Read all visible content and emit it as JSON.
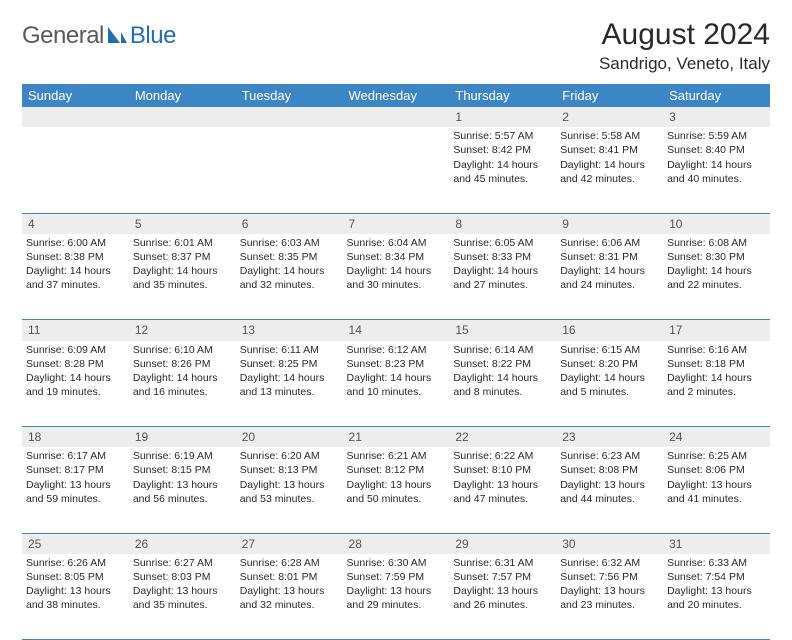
{
  "brand": {
    "part1": "General",
    "part2": "Blue"
  },
  "title": "August 2024",
  "location": "Sandrigo, Veneto, Italy",
  "colors": {
    "header_bg": "#3d86c6",
    "header_text": "#ffffff",
    "daynum_bg": "#ededed",
    "border": "#3d86c6",
    "logo_gray": "#5a5a5a",
    "logo_blue": "#1f6fb2"
  },
  "weekdays": [
    "Sunday",
    "Monday",
    "Tuesday",
    "Wednesday",
    "Thursday",
    "Friday",
    "Saturday"
  ],
  "weeks": [
    {
      "nums": [
        "",
        "",
        "",
        "",
        "1",
        "2",
        "3"
      ],
      "cells": [
        "",
        "",
        "",
        "",
        "Sunrise: 5:57 AM\nSunset: 8:42 PM\nDaylight: 14 hours and 45 minutes.",
        "Sunrise: 5:58 AM\nSunset: 8:41 PM\nDaylight: 14 hours and 42 minutes.",
        "Sunrise: 5:59 AM\nSunset: 8:40 PM\nDaylight: 14 hours and 40 minutes."
      ]
    },
    {
      "nums": [
        "4",
        "5",
        "6",
        "7",
        "8",
        "9",
        "10"
      ],
      "cells": [
        "Sunrise: 6:00 AM\nSunset: 8:38 PM\nDaylight: 14 hours and 37 minutes.",
        "Sunrise: 6:01 AM\nSunset: 8:37 PM\nDaylight: 14 hours and 35 minutes.",
        "Sunrise: 6:03 AM\nSunset: 8:35 PM\nDaylight: 14 hours and 32 minutes.",
        "Sunrise: 6:04 AM\nSunset: 8:34 PM\nDaylight: 14 hours and 30 minutes.",
        "Sunrise: 6:05 AM\nSunset: 8:33 PM\nDaylight: 14 hours and 27 minutes.",
        "Sunrise: 6:06 AM\nSunset: 8:31 PM\nDaylight: 14 hours and 24 minutes.",
        "Sunrise: 6:08 AM\nSunset: 8:30 PM\nDaylight: 14 hours and 22 minutes."
      ]
    },
    {
      "nums": [
        "11",
        "12",
        "13",
        "14",
        "15",
        "16",
        "17"
      ],
      "cells": [
        "Sunrise: 6:09 AM\nSunset: 8:28 PM\nDaylight: 14 hours and 19 minutes.",
        "Sunrise: 6:10 AM\nSunset: 8:26 PM\nDaylight: 14 hours and 16 minutes.",
        "Sunrise: 6:11 AM\nSunset: 8:25 PM\nDaylight: 14 hours and 13 minutes.",
        "Sunrise: 6:12 AM\nSunset: 8:23 PM\nDaylight: 14 hours and 10 minutes.",
        "Sunrise: 6:14 AM\nSunset: 8:22 PM\nDaylight: 14 hours and 8 minutes.",
        "Sunrise: 6:15 AM\nSunset: 8:20 PM\nDaylight: 14 hours and 5 minutes.",
        "Sunrise: 6:16 AM\nSunset: 8:18 PM\nDaylight: 14 hours and 2 minutes."
      ]
    },
    {
      "nums": [
        "18",
        "19",
        "20",
        "21",
        "22",
        "23",
        "24"
      ],
      "cells": [
        "Sunrise: 6:17 AM\nSunset: 8:17 PM\nDaylight: 13 hours and 59 minutes.",
        "Sunrise: 6:19 AM\nSunset: 8:15 PM\nDaylight: 13 hours and 56 minutes.",
        "Sunrise: 6:20 AM\nSunset: 8:13 PM\nDaylight: 13 hours and 53 minutes.",
        "Sunrise: 6:21 AM\nSunset: 8:12 PM\nDaylight: 13 hours and 50 minutes.",
        "Sunrise: 6:22 AM\nSunset: 8:10 PM\nDaylight: 13 hours and 47 minutes.",
        "Sunrise: 6:23 AM\nSunset: 8:08 PM\nDaylight: 13 hours and 44 minutes.",
        "Sunrise: 6:25 AM\nSunset: 8:06 PM\nDaylight: 13 hours and 41 minutes."
      ]
    },
    {
      "nums": [
        "25",
        "26",
        "27",
        "28",
        "29",
        "30",
        "31"
      ],
      "cells": [
        "Sunrise: 6:26 AM\nSunset: 8:05 PM\nDaylight: 13 hours and 38 minutes.",
        "Sunrise: 6:27 AM\nSunset: 8:03 PM\nDaylight: 13 hours and 35 minutes.",
        "Sunrise: 6:28 AM\nSunset: 8:01 PM\nDaylight: 13 hours and 32 minutes.",
        "Sunrise: 6:30 AM\nSunset: 7:59 PM\nDaylight: 13 hours and 29 minutes.",
        "Sunrise: 6:31 AM\nSunset: 7:57 PM\nDaylight: 13 hours and 26 minutes.",
        "Sunrise: 6:32 AM\nSunset: 7:56 PM\nDaylight: 13 hours and 23 minutes.",
        "Sunrise: 6:33 AM\nSunset: 7:54 PM\nDaylight: 13 hours and 20 minutes."
      ]
    }
  ]
}
